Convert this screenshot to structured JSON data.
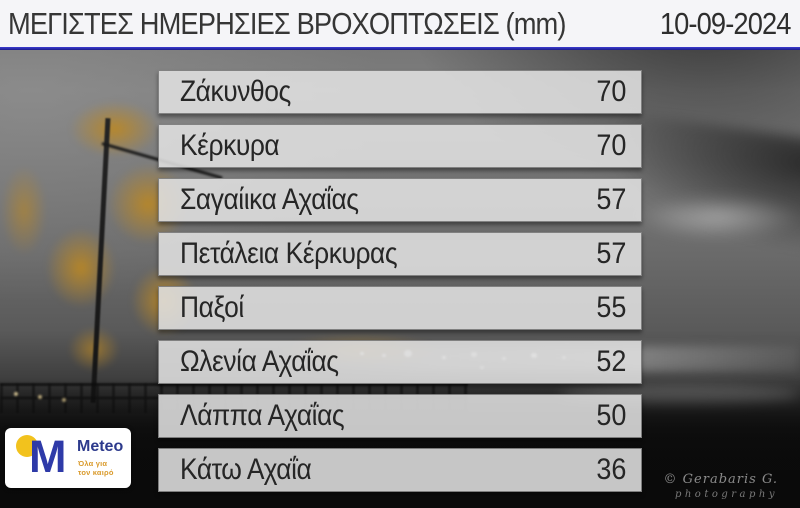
{
  "header": {
    "title": "ΜΕΓΙΣΤΕΣ ΗΜΕΡΗΣΙΕΣ ΒΡΟΧΟΠΤΩΣΕΙΣ (mm)",
    "date": "10-09-2024"
  },
  "rows": [
    {
      "name": "Ζάκυνθος",
      "value": "70"
    },
    {
      "name": "Κέρκυρα",
      "value": "70"
    },
    {
      "name": "Σαγαίικα Αχαΐας",
      "value": "57"
    },
    {
      "name": "Πετάλεια Κέρκυρας",
      "value": "57"
    },
    {
      "name": "Παξοί",
      "value": "55"
    },
    {
      "name": "Ωλενία Αχαΐας",
      "value": "52"
    },
    {
      "name": "Λάππα Αχαΐας",
      "value": "50"
    },
    {
      "name": "Κάτω Αχαΐα",
      "value": "36"
    }
  ],
  "chart_data": {
    "type": "table",
    "title": "ΜΕΓΙΣΤΕΣ ΗΜΕΡΗΣΙΕΣ ΒΡΟΧΟΠΤΩΣΕΙΣ (mm)",
    "date": "10-09-2024",
    "unit": "mm",
    "categories": [
      "Ζάκυνθος",
      "Κέρκυρα",
      "Σαγαίικα Αχαΐας",
      "Πετάλεια Κέρκυρας",
      "Παξοί",
      "Ωλενία Αχαΐας",
      "Λάππα Αχαΐας",
      "Κάτω Αχαΐα"
    ],
    "values": [
      70,
      70,
      57,
      57,
      55,
      52,
      50,
      36
    ]
  },
  "logo": {
    "m_letter": "M",
    "brand": "Meteo",
    "tagline_line1": "Όλα για",
    "tagline_line2": "τον καιρό"
  },
  "credit": {
    "line1": "© Gerabaris G.",
    "line2": "photography"
  },
  "colors": {
    "header_bg": "#f5f5f8",
    "accent_blue_line": "#2b32b2",
    "row_bg": "#e0e0e0",
    "row_text": "#262626",
    "logo_blue": "#2e3aa8",
    "logo_yellow": "#f2c21d",
    "logo_tagline_orange": "#d99a2b"
  }
}
